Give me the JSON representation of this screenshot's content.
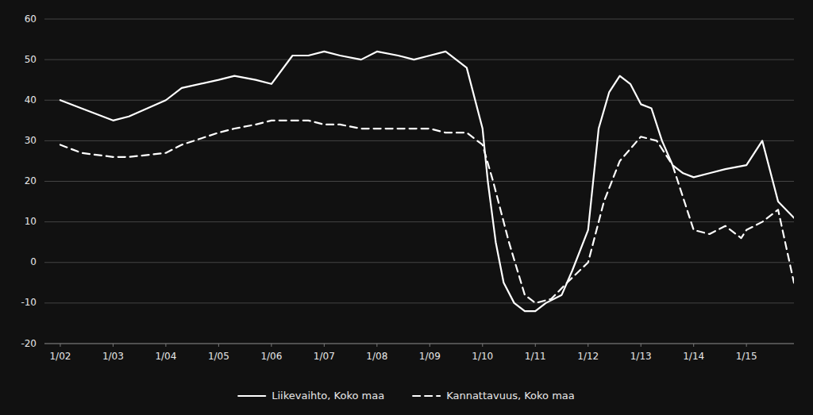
{
  "chart_data": {
    "type": "line",
    "series": [
      {
        "name": "Liikevaihto, Koko maa",
        "color": "#ffffff",
        "line_style": "solid",
        "x": [
          0,
          0.4,
          1,
          1.3,
          2,
          2.3,
          3,
          3.3,
          3.7,
          4,
          4.4,
          4.7,
          5,
          5.3,
          5.7,
          6,
          6.4,
          6.7,
          7,
          7.3,
          7.5,
          7.7,
          8,
          8.1,
          8.25,
          8.4,
          8.6,
          8.8,
          9,
          9.2,
          9.5,
          9.7,
          10,
          10.2,
          10.4,
          10.6,
          10.8,
          11,
          11.2,
          11.4,
          11.6,
          11.8,
          12,
          12.3,
          12.6,
          13,
          13.3,
          13.6,
          13.9
        ],
        "values": [
          40,
          38,
          35,
          36,
          40,
          43,
          45,
          46,
          45,
          44,
          51,
          51,
          52,
          51,
          50,
          52,
          51,
          50,
          51,
          52,
          50,
          48,
          33,
          20,
          5,
          -5,
          -10,
          -12,
          -12,
          -10,
          -8,
          -2,
          8,
          33,
          42,
          46,
          44,
          39,
          38,
          30,
          24,
          22,
          21,
          22,
          23,
          24,
          30,
          15,
          11
        ]
      },
      {
        "name": "Kannattavuus, Koko maa",
        "color": "#ffffff",
        "line_style": "dashed",
        "x": [
          0,
          0.4,
          1,
          1.3,
          2,
          2.3,
          3,
          3.3,
          3.7,
          4,
          4.4,
          4.7,
          5,
          5.3,
          5.7,
          6,
          6.4,
          6.7,
          7,
          7.3,
          7.7,
          8,
          8.2,
          8.5,
          8.8,
          9,
          9.3,
          9.6,
          10,
          10.3,
          10.6,
          11,
          11.3,
          11.6,
          12,
          12.3,
          12.6,
          12.9,
          13,
          13.3,
          13.6,
          13.9
        ],
        "values": [
          29,
          27,
          26,
          26,
          27,
          29,
          32,
          33,
          34,
          35,
          35,
          35,
          34,
          34,
          33,
          33,
          33,
          33,
          33,
          32,
          32,
          29,
          20,
          5,
          -8,
          -10,
          -9,
          -5,
          0,
          15,
          25,
          31,
          30,
          24,
          8,
          7,
          9,
          6,
          8,
          10,
          13,
          -5
        ]
      }
    ],
    "xlim": [
      -0.3,
      13.9
    ],
    "xticks": [
      {
        "value": 0,
        "label": "1/02"
      },
      {
        "value": 1,
        "label": "1/03"
      },
      {
        "value": 2,
        "label": "1/04"
      },
      {
        "value": 3,
        "label": "1/05"
      },
      {
        "value": 4,
        "label": "1/06"
      },
      {
        "value": 5,
        "label": "1/07"
      },
      {
        "value": 6,
        "label": "1/08"
      },
      {
        "value": 7,
        "label": "1/09"
      },
      {
        "value": 8,
        "label": "1/10"
      },
      {
        "value": 9,
        "label": "1/11"
      },
      {
        "value": 10,
        "label": "1/12"
      },
      {
        "value": 11,
        "label": "1/13"
      },
      {
        "value": 12,
        "label": "1/14"
      },
      {
        "value": 13,
        "label": "1/15"
      }
    ],
    "ylim": [
      -20,
      60
    ],
    "yticks": [
      -20,
      -10,
      0,
      10,
      20,
      30,
      40,
      50,
      60
    ],
    "grid": true,
    "legend": "bottom"
  }
}
